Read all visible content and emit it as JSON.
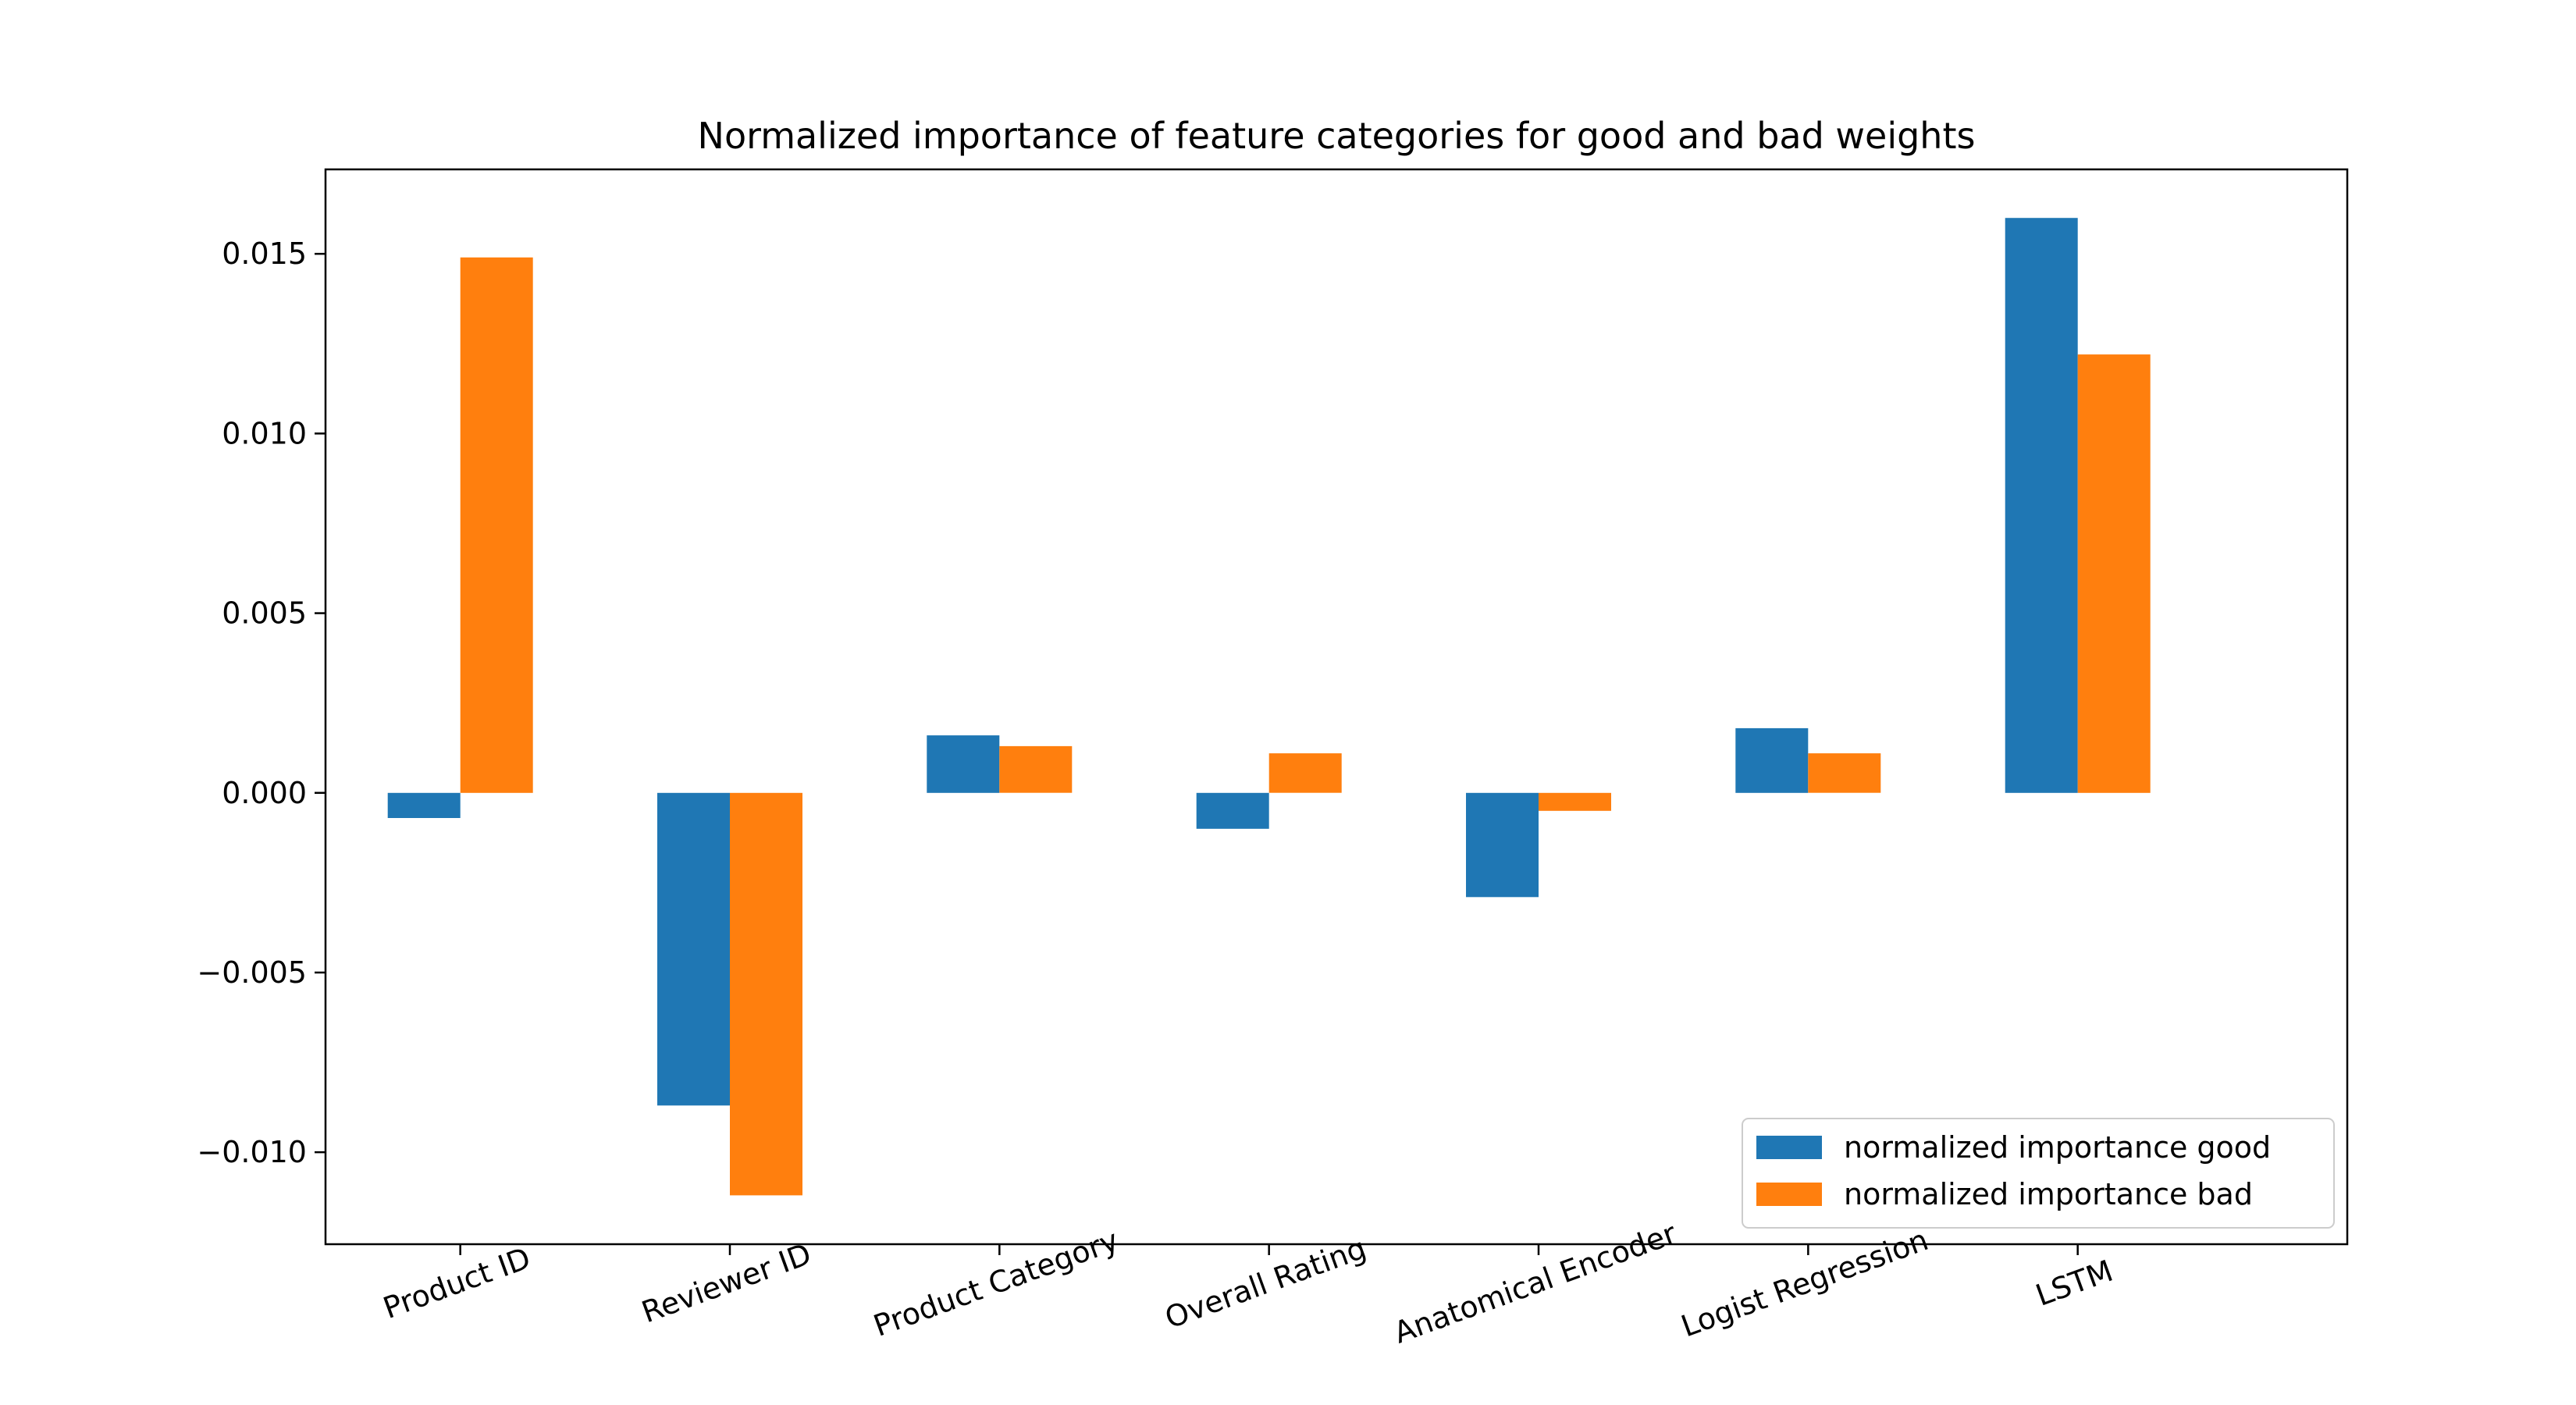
{
  "chart_data": {
    "type": "bar",
    "title": "Normalized importance of feature categories for good and bad weights",
    "xlabel": "",
    "ylabel": "",
    "categories": [
      "Product ID",
      "Reviewer ID",
      "Product Category",
      "Overall Rating",
      "Anatomical Encoder",
      "Logist Regression",
      "LSTM"
    ],
    "series": [
      {
        "name": "normalized importance good",
        "color": "#1f77b4",
        "values": [
          -0.0007,
          -0.0087,
          0.0016,
          -0.001,
          -0.0029,
          0.0018,
          0.016
        ]
      },
      {
        "name": "normalized importance bad",
        "color": "#ff7f0e",
        "values": [
          0.0149,
          -0.0112,
          0.0013,
          0.0011,
          -0.0005,
          0.0011,
          0.0122
        ]
      }
    ],
    "ylim": [
      -0.01256,
      0.01735
    ],
    "yticks": [
      -0.01,
      -0.005,
      0.0,
      0.005,
      0.01,
      0.015
    ],
    "ytick_labels": [
      "−0.010",
      "−0.005",
      "0.000",
      "0.005",
      "0.010",
      "0.015"
    ],
    "grid": false,
    "legend_position": "lower right",
    "xtick_rotation": -20
  }
}
